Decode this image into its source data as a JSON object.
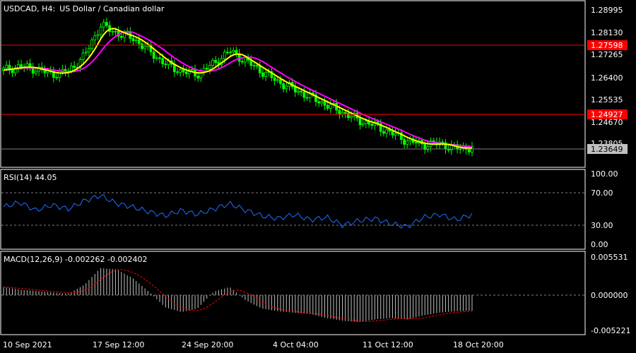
{
  "symbol": "USDCAD, H4:",
  "description": "US Dollar / Canadian dollar",
  "price_axis": [
    "1.28995",
    "1.28130",
    "1.27265",
    "1.26400",
    "1.25535",
    "1.24670",
    "1.23805"
  ],
  "hlines": [
    {
      "label": "1.27598",
      "value": 1.27598,
      "color": "#ff0000"
    },
    {
      "label": "1.24927",
      "value": 1.24927,
      "color": "#ff0000"
    }
  ],
  "current_price": {
    "label": "1.23649",
    "value": 1.23649
  },
  "rsi": {
    "title": "RSI(14) 44.05",
    "axis": [
      "100.00",
      "70.00",
      "30.00",
      "0.00"
    ],
    "levels": [
      70,
      30
    ]
  },
  "macd": {
    "title": "MACD(12,26,9) -0.002262 -0.002402",
    "axis": [
      "0.005531",
      "0.000000",
      "-0.005221"
    ]
  },
  "time_axis": [
    "10 Sep 2021",
    "17 Sep 12:00",
    "24 Sep 20:00",
    "4 Oct 04:00",
    "11 Oct 12:00",
    "18 Oct 20:00"
  ],
  "colors": {
    "background": "#000000",
    "candle": "#00ff00",
    "ma_fast": "#ffff00",
    "ma_slow": "#ff00ff",
    "rsi_line": "#1e6fff",
    "macd_hist": "#c0c0c0",
    "macd_signal": "#ff0000",
    "grid": "#808080"
  },
  "chart_data": {
    "type": "line",
    "x": [
      "10 Sep 2021",
      "17 Sep 12:00",
      "24 Sep 20:00",
      "4 Oct 04:00",
      "11 Oct 12:00",
      "18 Oct 20:00"
    ],
    "price_close": [
      1.2665,
      1.268,
      1.267,
      1.265,
      1.266,
      1.272,
      1.284,
      1.281,
      1.279,
      1.274,
      1.269,
      1.266,
      1.265,
      1.269,
      1.274,
      1.27,
      1.266,
      1.262,
      1.259,
      1.256,
      1.253,
      1.25,
      1.247,
      1.245,
      1.242,
      1.239,
      1.2375,
      1.238,
      1.236,
      1.2365
    ],
    "rsi_values": [
      55,
      62,
      50,
      58,
      52,
      64,
      72,
      60,
      55,
      48,
      42,
      50,
      44,
      52,
      60,
      50,
      42,
      38,
      44,
      36,
      40,
      28,
      35,
      38,
      30,
      26,
      40,
      44,
      36,
      44
    ],
    "macd_hist": [
      0.0012,
      0.0008,
      0.0006,
      0.0004,
      0.0002,
      0.0015,
      0.004,
      0.0038,
      0.0025,
      0.0005,
      -0.0018,
      -0.0025,
      -0.002,
      0.0005,
      0.0012,
      -0.0008,
      -0.002,
      -0.0024,
      -0.0026,
      -0.0028,
      -0.0034,
      -0.0038,
      -0.004,
      -0.0036,
      -0.0034,
      -0.0036,
      -0.003,
      -0.0026,
      -0.0024,
      -0.0023
    ]
  }
}
